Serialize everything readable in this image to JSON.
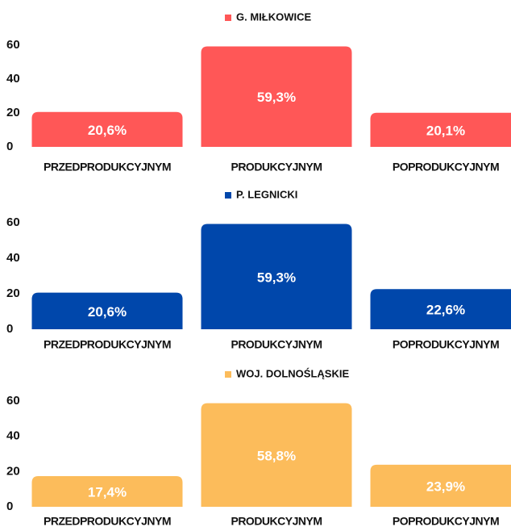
{
  "chart_data": [
    {
      "type": "bar",
      "series": [
        {
          "name": "G. MIŁKOWICE",
          "color": "#ff5757",
          "values": [
            20.6,
            59.3,
            20.1
          ],
          "value_labels": [
            "20,6%",
            "59,3%",
            "20,1%"
          ]
        }
      ],
      "categories": [
        "PRZEDPRODUKCYJNYM",
        "PRODUKCYJNYM",
        "POPRODUKCYJNYM"
      ],
      "ylim": [
        0,
        60
      ],
      "yticks": [
        0,
        20,
        40,
        60
      ]
    },
    {
      "type": "bar",
      "series": [
        {
          "name": "P. LEGNICKI",
          "color": "#0047ab",
          "values": [
            20.6,
            59.3,
            22.6
          ],
          "value_labels": [
            "20,6%",
            "59,3%",
            "22,6%"
          ]
        }
      ],
      "categories": [
        "PRZEDPRODUKCYJNYM",
        "PRODUKCYJNYM",
        "POPRODUKCYJNYM"
      ],
      "ylim": [
        0,
        60
      ],
      "yticks": [
        0,
        20,
        40,
        60
      ]
    },
    {
      "type": "bar",
      "series": [
        {
          "name": "WOJ. DOLNOŚLĄSKIE",
          "color": "#fcbc5b",
          "values": [
            17.4,
            58.8,
            23.9
          ],
          "value_labels": [
            "17,4%",
            "58,8%",
            "23,9%"
          ]
        }
      ],
      "categories": [
        "PRZEDPRODUKCYJNYM",
        "PRODUKCYJNYM",
        "POPRODUKCYJNYM"
      ],
      "ylim": [
        0,
        60
      ],
      "yticks": [
        0,
        20,
        40,
        60
      ]
    }
  ]
}
